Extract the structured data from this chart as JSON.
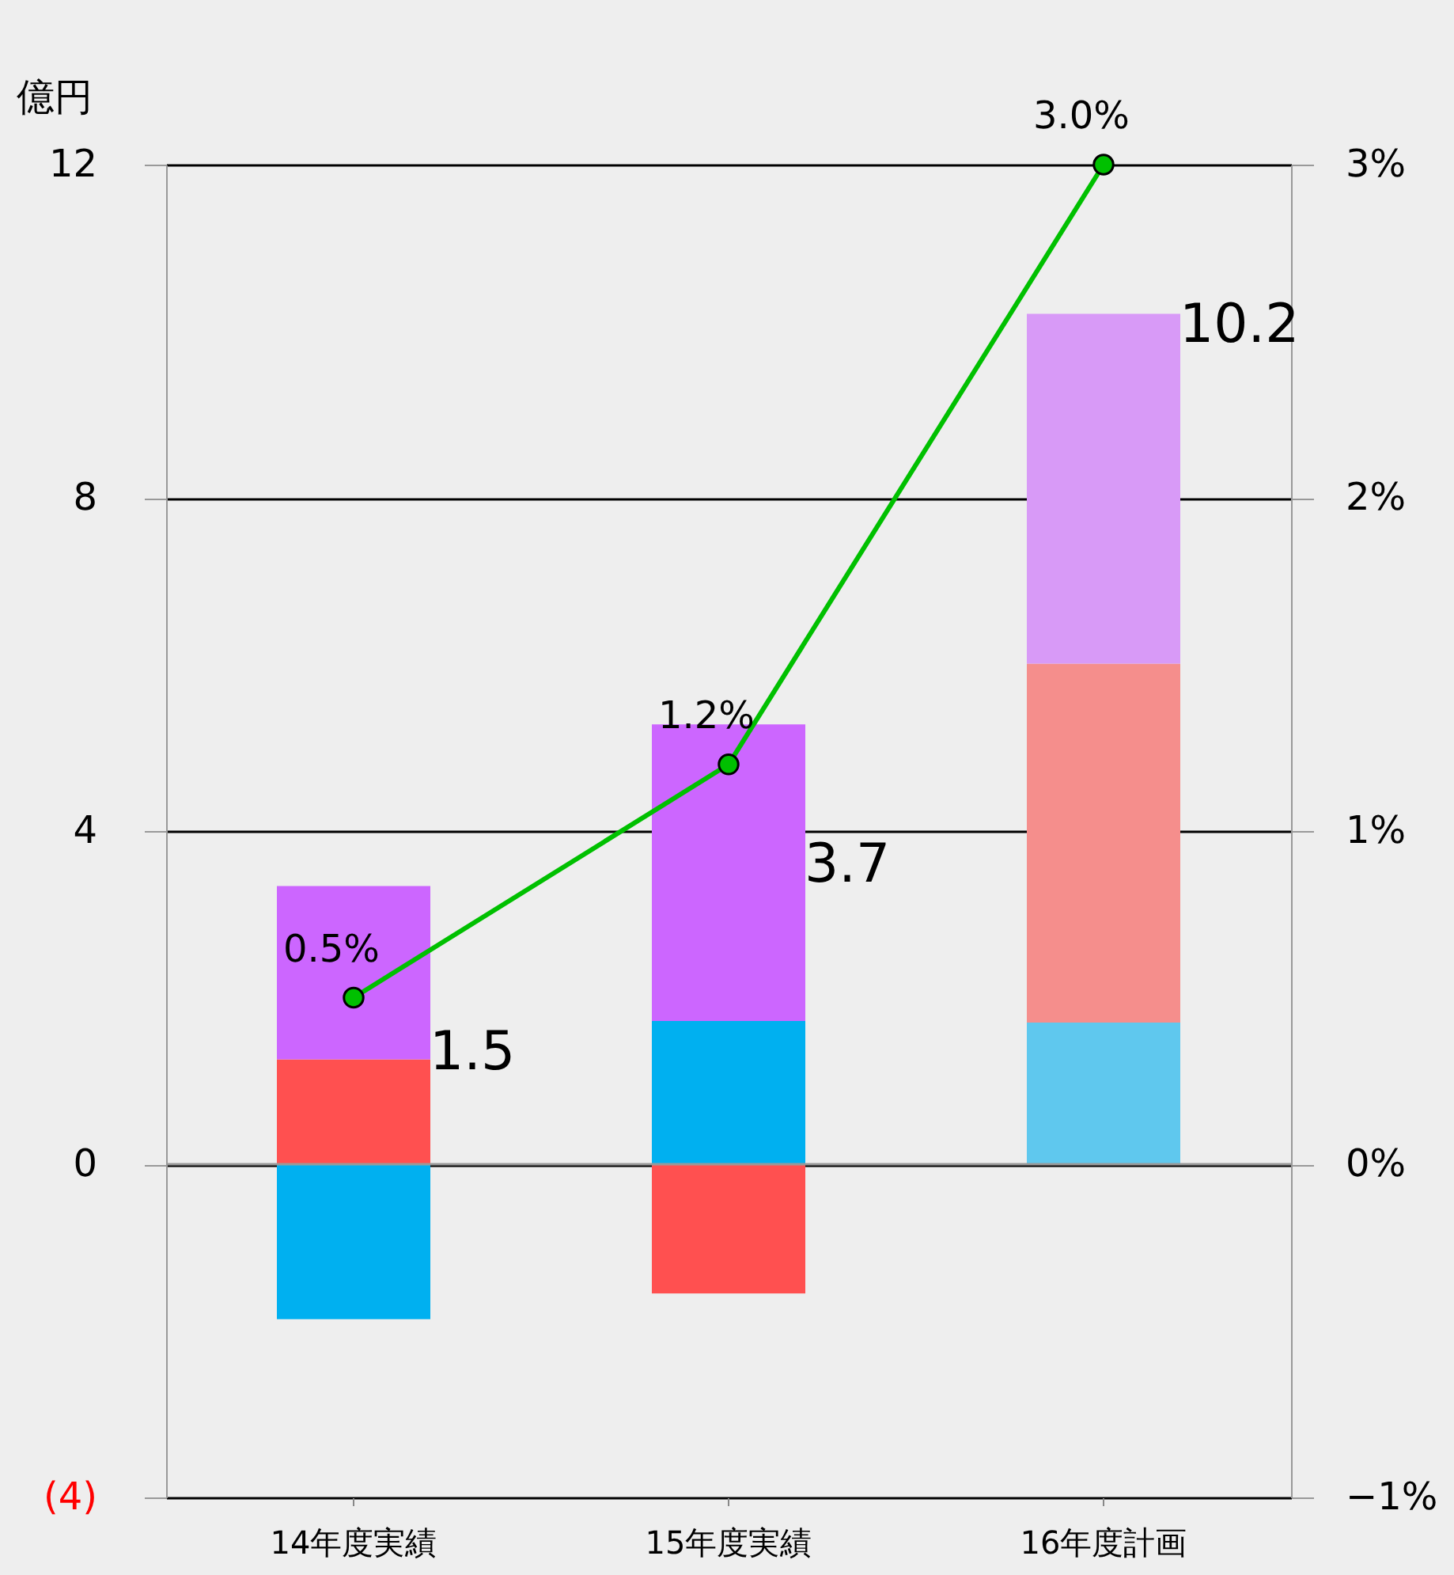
{
  "chart_data": {
    "type": "bar",
    "stacked": true,
    "ylabel": "億円",
    "categories": [
      "14年度実績",
      "15年度実績",
      "16年度計画"
    ],
    "series": [
      {
        "colors": [
          "#00b0f0",
          "#00b0f0",
          "#5fc8ee"
        ],
        "values": [
          -1.86,
          1.72,
          1.7
        ]
      },
      {
        "colors": [
          "#ff5050",
          "#ff5050",
          "#f58e8c"
        ],
        "values": [
          1.26,
          -1.55,
          4.31
        ]
      },
      {
        "colors": [
          "#cc66ff",
          "#cc66ff",
          "#d89af7"
        ],
        "values": [
          2.08,
          3.56,
          4.2
        ]
      },
      {
        "type": "line",
        "axis": "y2",
        "color": "#00c000",
        "marker": "circle",
        "values": [
          0.5,
          1.2,
          3.0
        ],
        "value_labels": [
          "0.5%",
          "1.2%",
          "3.0%"
        ]
      }
    ],
    "totals": [
      "1.5",
      "3.7",
      "10.2"
    ],
    "ylim": [
      -4,
      12
    ],
    "yticks": [
      {
        "value": -4,
        "label": "(4)"
      },
      0,
      4,
      8,
      12
    ],
    "y2lim": [
      -1,
      3
    ],
    "y2ticks": [
      {
        "value": -1,
        "label": "−1%"
      },
      {
        "value": 0,
        "label": "0%"
      },
      {
        "value": 1,
        "label": "1%"
      },
      {
        "value": 2,
        "label": "2%"
      },
      {
        "value": 3,
        "label": "3%"
      }
    ],
    "grid": "y"
  }
}
